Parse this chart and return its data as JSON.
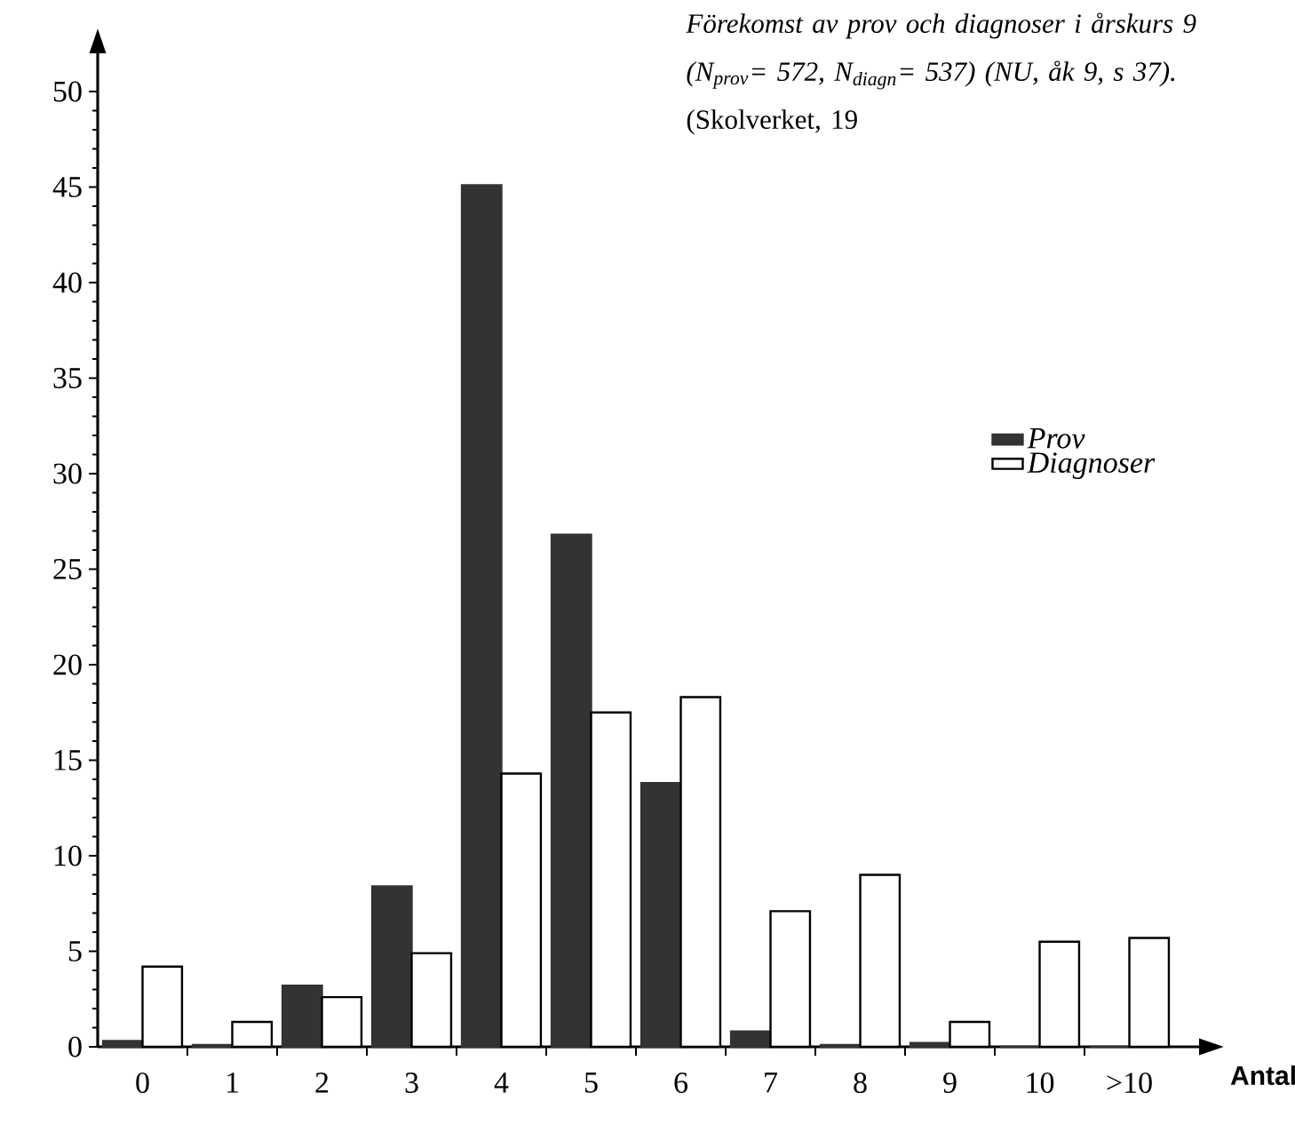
{
  "chart_data": {
    "type": "bar",
    "title": "Förekomst av prov och diagnoser i årskurs 9 (N$_{prov}$= 572, N$_{diagn}$= 537) (NU, åk 9, s 37).",
    "annotations": [
      "(Skolverket, 19"
    ],
    "xlabel": "Antal",
    "categories": [
      "0",
      "1",
      "2",
      "3",
      "4",
      "5",
      "6",
      "7",
      "8",
      "9",
      "10",
      ">10"
    ],
    "series": [
      {
        "name": "Prov",
        "color": "#333333",
        "values": [
          0.3,
          0.1,
          3.2,
          8.4,
          45.1,
          26.8,
          13.8,
          0.8,
          0.1,
          0.2,
          0,
          0
        ]
      },
      {
        "name": "Diagnoser",
        "color": "#ffffff",
        "values": [
          4.2,
          1.3,
          2.6,
          4.9,
          14.3,
          17.5,
          18.3,
          7.1,
          9.0,
          1.3,
          5.5,
          5.7
        ]
      }
    ],
    "ylim": [
      0,
      52
    ],
    "yticks": [
      0,
      5,
      10,
      15,
      20,
      25,
      30,
      35,
      40,
      45,
      50
    ],
    "legend": "right"
  }
}
